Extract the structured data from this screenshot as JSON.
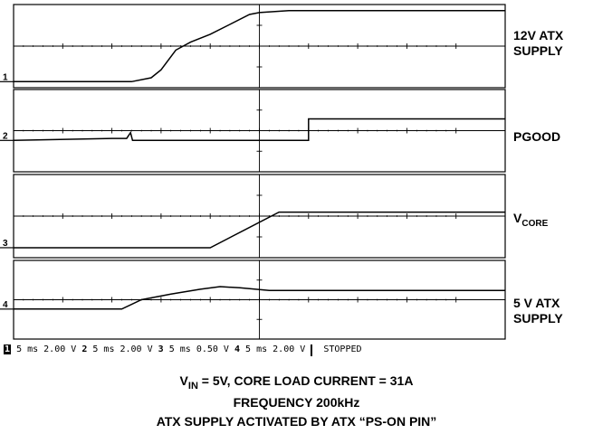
{
  "chart_data": {
    "type": "line",
    "title": "",
    "channels": [
      {
        "number": "1",
        "label_lines": [
          "12V ATX",
          "SUPPLY"
        ],
        "values": [
          [
            0,
            -0.9
          ],
          [
            2.4,
            -0.9
          ],
          [
            2.8,
            -0.8
          ],
          [
            3.0,
            -0.6
          ],
          [
            3.3,
            -0.1
          ],
          [
            3.6,
            0.1
          ],
          [
            4.0,
            0.3
          ],
          [
            4.4,
            0.55
          ],
          [
            4.8,
            0.8
          ],
          [
            5.0,
            0.85
          ],
          [
            5.6,
            0.9
          ],
          [
            10,
            0.9
          ]
        ]
      },
      {
        "number": "2",
        "label_lines": [
          "PGOOD"
        ],
        "values": [
          [
            0,
            -0.25
          ],
          [
            2.0,
            -0.2
          ],
          [
            2.3,
            -0.2
          ],
          [
            2.38,
            -0.05
          ],
          [
            2.42,
            -0.25
          ],
          [
            6.0,
            -0.25
          ],
          [
            6.0,
            0.3
          ],
          [
            10,
            0.3
          ]
        ]
      },
      {
        "number": "3",
        "label_lines": [
          "V",
          "CORE"
        ],
        "values": [
          [
            0,
            -0.8
          ],
          [
            4.0,
            -0.8
          ],
          [
            5.4,
            0.1
          ],
          [
            6.0,
            0.1
          ],
          [
            10,
            0.1
          ]
        ]
      },
      {
        "number": "4",
        "label_lines": [
          "5 V ATX",
          "SUPPLY"
        ],
        "values": [
          [
            0,
            -0.25
          ],
          [
            2.2,
            -0.25
          ],
          [
            2.6,
            0.0
          ],
          [
            3.2,
            0.15
          ],
          [
            3.8,
            0.28
          ],
          [
            4.2,
            0.35
          ],
          [
            4.6,
            0.32
          ],
          [
            5.2,
            0.25
          ],
          [
            10,
            0.25
          ]
        ]
      }
    ],
    "grid": true,
    "divisions_x": 10
  },
  "status_bar": {
    "ch1": "1",
    "ch1_settings": "5 ms 2.00 V",
    "ch2": "2",
    "ch2_settings": "5 ms 2.00 V",
    "ch3": "3",
    "ch3_settings": "5 ms 0.50 V",
    "ch4": "4",
    "ch4_settings": "5 ms 2.00 V",
    "state": "STOPPED"
  },
  "caption": {
    "line1_v": "V",
    "line1_sub": "IN",
    "line1_rest": " = 5V, CORE LOAD CURRENT = 31A",
    "line2": "FREQUENCY 200kHz",
    "line3": "ATX SUPPLY ACTIVATED BY ATX “PS-ON PIN”"
  }
}
